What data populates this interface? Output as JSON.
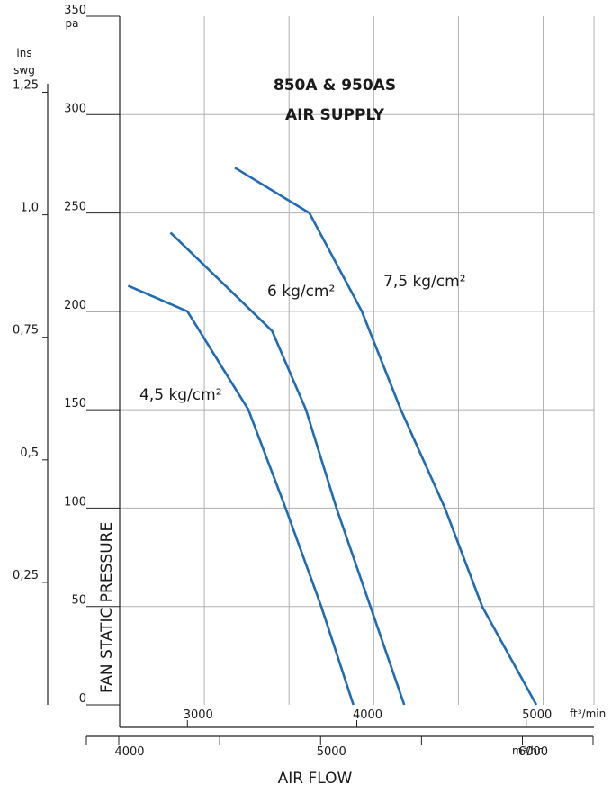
{
  "chart_data": {
    "type": "line",
    "title": "850A & 950AS",
    "subtitle": "AIR SUPPLY",
    "ylabel": "FAN STATIC PRESSURE",
    "xlabel": "AIR FLOW",
    "grid": true,
    "y_pa": {
      "unit": "pa",
      "ylim": [
        0,
        350
      ],
      "ticks": [
        "0",
        "50",
        "100",
        "150",
        "200",
        "250",
        "300",
        "350"
      ]
    },
    "y_inswg": {
      "unit_line1": "ins",
      "unit_line2": "swg",
      "ticks": [
        {
          "value": 0.25,
          "label": "0,25"
        },
        {
          "value": 0.5,
          "label": "0,5"
        },
        {
          "value": 0.75,
          "label": "0,75"
        },
        {
          "value": 1.0,
          "label": "1,0"
        },
        {
          "value": 1.25,
          "label": "1,25"
        }
      ]
    },
    "x_ft3min": {
      "unit": "ft³/min",
      "xlim": [
        2100,
        4900
      ],
      "ticks": [
        {
          "value": 2500,
          "label": "3000"
        },
        {
          "value": 3500,
          "label": "4000"
        },
        {
          "value": 4500,
          "label": "5000"
        }
      ]
    },
    "x_m3hr": {
      "unit": "m³/hr",
      "xlim": [
        3600,
        8300
      ],
      "ticks": [
        {
          "value": 3600,
          "label": "4000"
        },
        {
          "value": 5600,
          "label": "5000"
        },
        {
          "value": 7600,
          "label": "6000"
        }
      ]
    },
    "series": [
      {
        "name": "4,5 kg/cm²",
        "color": "#1f6bb4",
        "points": [
          [
            2150,
            213
          ],
          [
            2500,
            200
          ],
          [
            2860,
            150
          ],
          [
            3080,
            100
          ],
          [
            3290,
            50
          ],
          [
            3480,
            0
          ]
        ]
      },
      {
        "name": "6 kg/cm²",
        "color": "#1f6bb4",
        "points": [
          [
            2400,
            240
          ],
          [
            3000,
            190
          ],
          [
            3200,
            150
          ],
          [
            3380,
            100
          ],
          [
            3580,
            50
          ],
          [
            3780,
            0
          ]
        ]
      },
      {
        "name": "7,5 kg/cm²",
        "color": "#1f6bb4",
        "points": [
          [
            2780,
            273
          ],
          [
            3220,
            250
          ],
          [
            3530,
            200
          ],
          [
            3760,
            150
          ],
          [
            4020,
            100
          ],
          [
            4240,
            50
          ],
          [
            4560,
            0
          ]
        ]
      }
    ]
  }
}
